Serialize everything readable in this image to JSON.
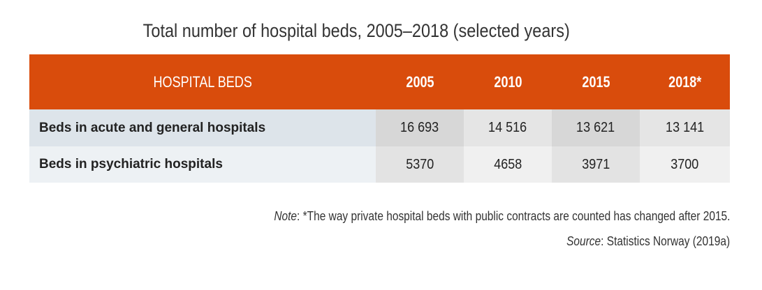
{
  "title": "Total number of hospital beds, 2005–2018 (selected years)",
  "table": {
    "header": {
      "label": "HOSPITAL BEDS",
      "years": [
        "2005",
        "2010",
        "2015",
        "2018*"
      ]
    },
    "rows": [
      {
        "label": "Beds in acute and general hospitals",
        "values": [
          "16 693",
          "14 516",
          "13 621",
          "13 141"
        ]
      },
      {
        "label": "Beds in psychiatric hospitals",
        "values": [
          "5370",
          "4658",
          "3971",
          "3700"
        ]
      }
    ]
  },
  "note": {
    "prefix": "Note",
    "text": ": *The way private hospital beds with public contracts are counted has changed after 2015."
  },
  "source": {
    "prefix": "Source",
    "text": ": Statistics Norway (2019a)"
  },
  "colors": {
    "header_background": "#d94c0c",
    "header_text": "#ffffff"
  }
}
